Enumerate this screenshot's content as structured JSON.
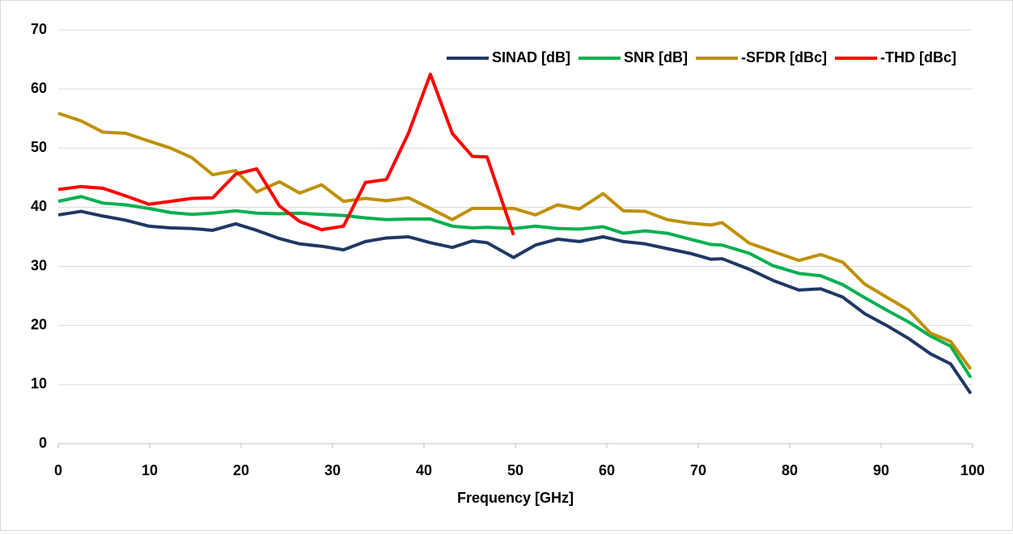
{
  "chart_data": {
    "type": "line",
    "x_label": "Frequency [GHz]",
    "x": [
      0,
      2.5,
      4.9,
      7.4,
      9.9,
      12.3,
      14.6,
      16.9,
      19.4,
      21.7,
      24.2,
      26.4,
      28.8,
      31.2,
      33.6,
      35.9,
      38.3,
      40.7,
      43.1,
      45.3,
      46.9,
      49.8,
      52.2,
      54.6,
      57,
      59.6,
      61.8,
      64.2,
      66.6,
      69.1,
      71.4,
      72.6,
      75.6,
      78.2,
      81,
      83.4,
      85.8,
      88.2,
      90.6,
      93,
      95.4,
      97.6,
      99.8
    ],
    "series": [
      {
        "name": "SINAD [dB]",
        "color": "#203864",
        "values": [
          38.7,
          39.3,
          38.5,
          37.8,
          36.8,
          36.5,
          36.4,
          36.1,
          37.2,
          36.1,
          34.7,
          33.8,
          33.4,
          32.8,
          34.2,
          34.8,
          35.0,
          34.0,
          33.2,
          34.3,
          34.0,
          31.5,
          33.6,
          34.6,
          34.2,
          35.0,
          34.2,
          33.8,
          33.0,
          32.2,
          31.2,
          31.3,
          29.5,
          27.6,
          26.0,
          26.2,
          24.8,
          22.0,
          20.0,
          17.8,
          15.2,
          13.5,
          8.5
        ]
      },
      {
        "name": "SNR [dB]",
        "color": "#00b050",
        "values": [
          41.0,
          41.8,
          40.7,
          40.4,
          39.8,
          39.1,
          38.8,
          39.0,
          39.4,
          39.0,
          38.9,
          39.0,
          38.8,
          38.6,
          38.2,
          37.9,
          38.0,
          38.0,
          36.8,
          36.5,
          36.6,
          36.4,
          36.8,
          36.4,
          36.3,
          36.7,
          35.6,
          36.0,
          35.6,
          34.6,
          33.7,
          33.6,
          32.2,
          30.1,
          28.8,
          28.4,
          26.9,
          24.7,
          22.6,
          20.6,
          18.2,
          16.5,
          11.2
        ]
      },
      {
        "name": "-SFDR [dBc]",
        "color": "#bf9000",
        "values": [
          55.9,
          54.6,
          52.7,
          52.5,
          51.2,
          50.0,
          48.4,
          45.5,
          46.2,
          42.6,
          44.3,
          42.4,
          43.8,
          41.0,
          41.5,
          41.1,
          41.6,
          39.8,
          37.9,
          39.8,
          39.8,
          39.8,
          38.7,
          40.4,
          39.7,
          42.3,
          39.4,
          39.3,
          37.9,
          37.3,
          37.0,
          37.4,
          33.9,
          32.5,
          31.0,
          32.0,
          30.7,
          27.0,
          24.8,
          22.6,
          18.7,
          17.3,
          12.6
        ]
      },
      {
        "name": "-THD [dBc]",
        "color": "#ff0000",
        "values": [
          43.0,
          43.5,
          43.2,
          41.9,
          40.5,
          41.0,
          41.5,
          41.6,
          45.6,
          46.5,
          40.2,
          37.6,
          36.2,
          36.8,
          44.2,
          44.7,
          52.5,
          62.5,
          52.5,
          48.6,
          48.5,
          35.3,
          null,
          null,
          null,
          null,
          null,
          null,
          null,
          null,
          null,
          null,
          null,
          null,
          null,
          null,
          null,
          null,
          null,
          null,
          null,
          null,
          null
        ]
      }
    ],
    "xlim": [
      0,
      100
    ],
    "xticks": [
      0,
      10,
      20,
      30,
      40,
      50,
      60,
      70,
      80,
      90,
      100
    ],
    "ylim": [
      0,
      70
    ],
    "yticks": [
      0,
      10,
      20,
      30,
      40,
      50,
      60,
      70
    ],
    "grid": true,
    "legend": "top-right"
  }
}
